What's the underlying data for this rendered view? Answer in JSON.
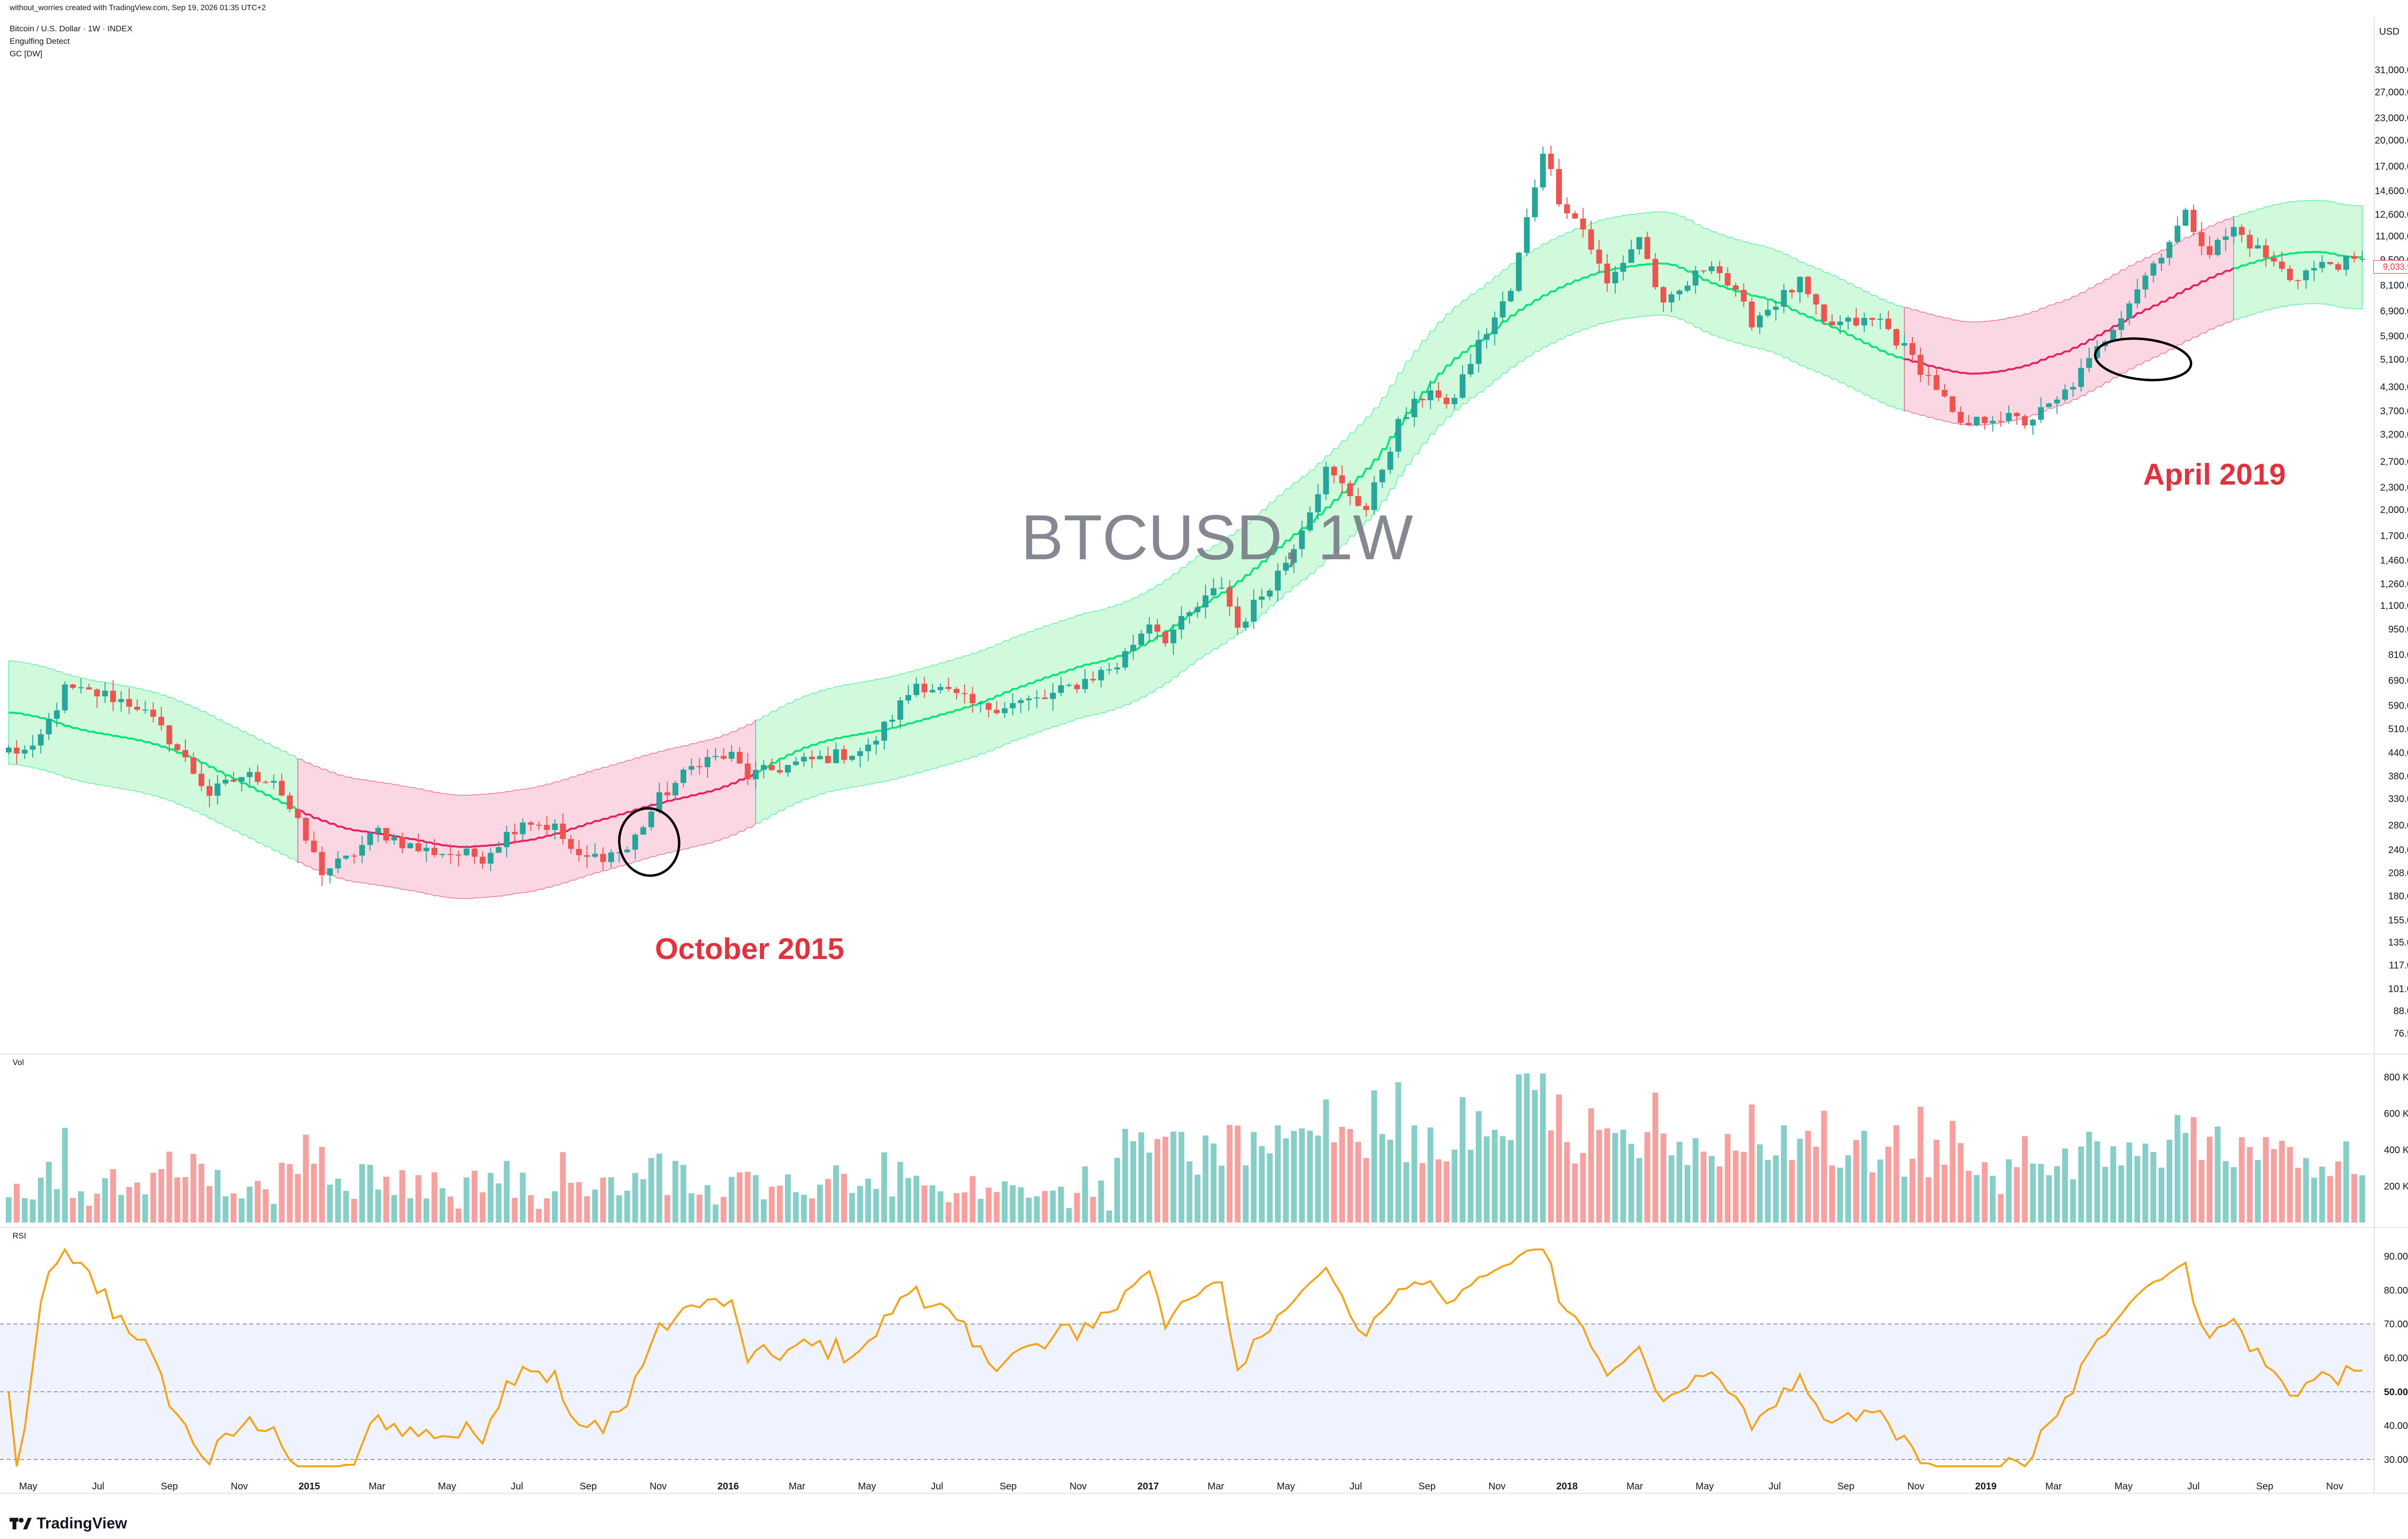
{
  "header": {
    "credit": "without_worries created with TradingView.com, Sep 19, 2026 01:35 UTC+2",
    "symbol_line": "Bitcoin / U.S. Dollar · 1W · INDEX",
    "indicator1": "Engulfing Detect",
    "indicator2": "GC [DW]"
  },
  "watermark": "BTCUSD, 1W",
  "annotations": {
    "left": "October 2015",
    "right": "April 2019"
  },
  "panels": {
    "volume_label": "Vol",
    "rsi_label": "RSI"
  },
  "brand": {
    "name": "TradingView"
  },
  "colors": {
    "up": "#26a69a",
    "down": "#ef5350",
    "band_green": "#b9f6ca",
    "band_red": "#f8bbd0",
    "rsi_line": "#f7a21b",
    "annotation": "#e0323f"
  },
  "chart_data": {
    "type": "candlestick",
    "currency": "USD",
    "current_price": "9,033.99",
    "price_axis_log": true,
    "price_ticks": [
      "31,000.00",
      "27,000.00",
      "23,000.00",
      "20,000.00",
      "17,000.00",
      "14,600.00",
      "12,600.00",
      "11,000.00",
      "9,500.00",
      "8,100.00",
      "6,900.00",
      "5,900.00",
      "5,100.00",
      "4,300.00",
      "3,700.00",
      "3,200.00",
      "2,700.00",
      "2,300.00",
      "2,000.00",
      "1,700.00",
      "1,460.00",
      "1,260.00",
      "1,100.00",
      "950.00",
      "810.00",
      "690.00",
      "590.00",
      "510.00",
      "440.00",
      "380.00",
      "330.00",
      "280.00",
      "240.00",
      "208.00",
      "180.00",
      "155.00",
      "135.00",
      "117.00",
      "101.00",
      "88.00",
      "76.50"
    ],
    "volume_ticks": [
      "800 K",
      "600 K",
      "400 K",
      "200 K"
    ],
    "rsi_ticks": [
      "90.00",
      "80.00",
      "70.00",
      "60.00",
      "50.00",
      "40.00",
      "30.00"
    ],
    "rsi_band": [
      30,
      70
    ],
    "x_ticks": [
      {
        "label": "May",
        "bold": false
      },
      {
        "label": "Jul",
        "bold": false
      },
      {
        "label": "Sep",
        "bold": false
      },
      {
        "label": "Nov",
        "bold": false
      },
      {
        "label": "2015",
        "bold": true
      },
      {
        "label": "Mar",
        "bold": false
      },
      {
        "label": "May",
        "bold": false
      },
      {
        "label": "Jul",
        "bold": false
      },
      {
        "label": "Sep",
        "bold": false
      },
      {
        "label": "Nov",
        "bold": false
      },
      {
        "label": "2016",
        "bold": true
      },
      {
        "label": "Mar",
        "bold": false
      },
      {
        "label": "May",
        "bold": false
      },
      {
        "label": "Jul",
        "bold": false
      },
      {
        "label": "Sep",
        "bold": false
      },
      {
        "label": "Nov",
        "bold": false
      },
      {
        "label": "2017",
        "bold": true
      },
      {
        "label": "Mar",
        "bold": false
      },
      {
        "label": "May",
        "bold": false
      },
      {
        "label": "Jul",
        "bold": false
      },
      {
        "label": "Sep",
        "bold": false
      },
      {
        "label": "Nov",
        "bold": false
      },
      {
        "label": "2018",
        "bold": true
      },
      {
        "label": "Mar",
        "bold": false
      },
      {
        "label": "May",
        "bold": false
      },
      {
        "label": "Jul",
        "bold": false
      },
      {
        "label": "Sep",
        "bold": false
      },
      {
        "label": "Nov",
        "bold": false
      },
      {
        "label": "2019",
        "bold": true
      },
      {
        "label": "Mar",
        "bold": false
      },
      {
        "label": "May",
        "bold": false
      },
      {
        "label": "Jul",
        "bold": false
      },
      {
        "label": "Sep",
        "bold": false
      },
      {
        "label": "Nov",
        "bold": false
      }
    ],
    "weekly_close_path": [
      [
        "2014-04-07",
        450
      ],
      [
        "2014-05-05",
        440
      ],
      [
        "2014-06-02",
        650
      ],
      [
        "2014-07-07",
        630
      ],
      [
        "2014-08-04",
        590
      ],
      [
        "2014-09-01",
        480
      ],
      [
        "2014-10-06",
        340
      ],
      [
        "2014-11-03",
        380
      ],
      [
        "2014-12-01",
        375
      ],
      [
        "2015-01-12",
        210
      ],
      [
        "2015-02-02",
        225
      ],
      [
        "2015-03-02",
        270
      ],
      [
        "2015-04-06",
        240
      ],
      [
        "2015-05-04",
        235
      ],
      [
        "2015-06-01",
        230
      ],
      [
        "2015-07-06",
        290
      ],
      [
        "2015-08-03",
        275
      ],
      [
        "2015-08-24",
        225
      ],
      [
        "2015-10-05",
        240
      ],
      [
        "2015-11-02",
        330
      ],
      [
        "2015-12-07",
        420
      ],
      [
        "2016-01-04",
        430
      ],
      [
        "2016-01-18",
        380
      ],
      [
        "2016-03-07",
        415
      ],
      [
        "2016-05-02",
        450
      ],
      [
        "2016-06-13",
        680
      ],
      [
        "2016-07-04",
        650
      ],
      [
        "2016-08-08",
        580
      ],
      [
        "2016-10-03",
        615
      ],
      [
        "2016-12-05",
        760
      ],
      [
        "2017-01-02",
        1000
      ],
      [
        "2017-01-16",
        900
      ],
      [
        "2017-03-06",
        1250
      ],
      [
        "2017-03-20",
        960
      ],
      [
        "2017-05-01",
        1450
      ],
      [
        "2017-06-05",
        2550
      ],
      [
        "2017-07-10",
        2000
      ],
      [
        "2017-08-07",
        3400
      ],
      [
        "2017-09-04",
        4300
      ],
      [
        "2017-09-18",
        3700
      ],
      [
        "2017-10-16",
        5600
      ],
      [
        "2017-11-13",
        7800
      ],
      [
        "2017-12-11",
        19000
      ],
      [
        "2017-12-25",
        14000
      ],
      [
        "2018-01-15",
        11500
      ],
      [
        "2018-02-05",
        8100
      ],
      [
        "2018-03-05",
        11000
      ],
      [
        "2018-03-26",
        7000
      ],
      [
        "2018-05-07",
        9500
      ],
      [
        "2018-06-11",
        6500
      ],
      [
        "2018-07-23",
        8200
      ],
      [
        "2018-08-13",
        6300
      ],
      [
        "2018-10-01",
        6500
      ],
      [
        "2018-11-19",
        4300
      ],
      [
        "2018-12-10",
        3300
      ],
      [
        "2019-01-07",
        3600
      ],
      [
        "2019-02-04",
        3450
      ],
      [
        "2019-03-04",
        3900
      ],
      [
        "2019-04-01",
        5000
      ],
      [
        "2019-05-13",
        8000
      ],
      [
        "2019-06-24",
        12500
      ],
      [
        "2019-07-15",
        10000
      ],
      [
        "2019-08-05",
        11500
      ],
      [
        "2019-09-23",
        8500
      ],
      [
        "2019-10-28",
        9300
      ]
    ]
  }
}
